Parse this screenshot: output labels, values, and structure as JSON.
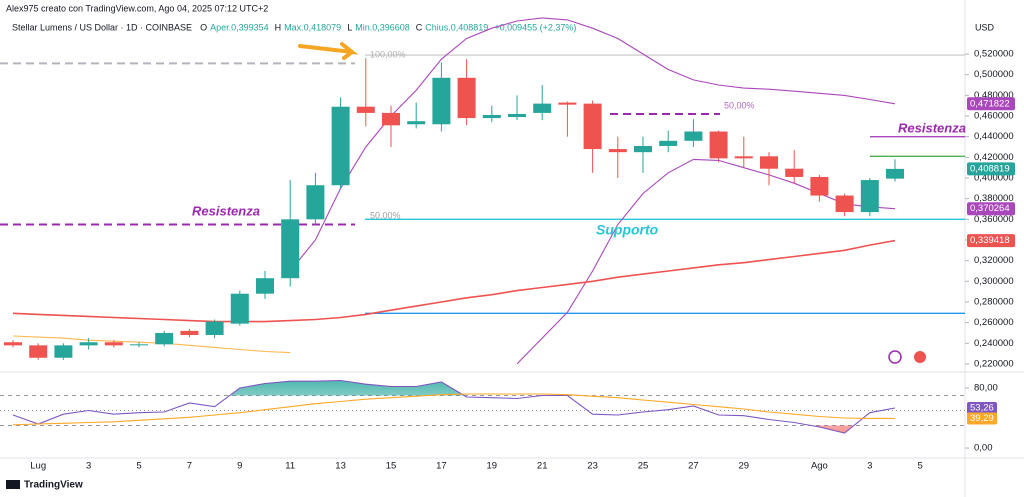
{
  "header": {
    "credit": "Alex975 creato con TradingView.com, Ago 04, 2025 07:12 UTC+2",
    "symbol": "Stellar Lumens / US Dollar · 1D · COINBASE",
    "quote": [
      {
        "key": "O",
        "text": "Aper.0,399354"
      },
      {
        "key": "H",
        "text": "Max.0,418079"
      },
      {
        "key": "L",
        "text": "Min.0,396608"
      },
      {
        "key": "C",
        "text": "Chius.0,408819"
      }
    ],
    "change": "+0,009455 (+2,37%)"
  },
  "footer": {
    "brand": "TradingView"
  },
  "chart_data": [
    {
      "type": "candlestick",
      "currency": "USD",
      "up_color": "#26a69a",
      "down_color": "#ef5350",
      "categories": [
        null,
        "Lug",
        null,
        "3",
        null,
        "5",
        null,
        "7",
        null,
        "9",
        null,
        "11",
        null,
        "13",
        null,
        "15",
        null,
        "17",
        null,
        "19",
        null,
        "21",
        null,
        "23",
        null,
        "25",
        null,
        "27",
        null,
        "29",
        null,
        null,
        "Ago",
        null,
        "3",
        null,
        "5"
      ],
      "open": [
        0.241,
        0.238,
        0.226,
        0.238,
        0.241,
        0.238,
        0.239,
        0.252,
        0.248,
        0.259,
        0.288,
        0.303,
        0.36,
        0.393,
        0.469,
        0.463,
        0.452,
        0.452,
        0.497,
        0.458,
        0.459,
        0.463,
        0.473,
        0.472,
        0.428,
        0.425,
        0.431,
        0.436,
        0.445,
        0.421,
        0.421,
        0.409,
        0.401,
        0.383,
        0.367,
        0.399354,
        null
      ],
      "high": [
        0.243,
        0.24,
        0.24,
        0.245,
        0.243,
        0.241,
        0.252,
        0.254,
        0.263,
        0.291,
        0.31,
        0.398,
        0.405,
        0.478,
        0.516,
        0.47,
        0.473,
        0.512,
        0.515,
        0.47,
        0.48,
        0.49,
        0.474,
        0.475,
        0.44,
        0.44,
        0.446,
        0.457,
        0.446,
        0.44,
        0.425,
        0.427,
        0.403,
        0.385,
        0.4,
        0.418079,
        null
      ],
      "low": [
        0.236,
        0.224,
        0.224,
        0.234,
        0.236,
        0.236,
        0.237,
        0.246,
        0.245,
        0.257,
        0.283,
        0.295,
        0.355,
        0.39,
        0.45,
        0.43,
        0.448,
        0.445,
        0.451,
        0.454,
        0.456,
        0.456,
        0.44,
        0.405,
        0.4,
        0.405,
        0.425,
        0.43,
        0.415,
        0.41,
        0.393,
        0.395,
        0.377,
        0.363,
        0.363,
        0.396608,
        null
      ],
      "close": [
        0.238,
        0.226,
        0.238,
        0.241,
        0.238,
        0.239,
        0.25,
        0.248,
        0.261,
        0.288,
        0.303,
        0.36,
        0.393,
        0.469,
        0.463,
        0.451,
        0.455,
        0.497,
        0.458,
        0.461,
        0.462,
        0.472,
        0.471,
        0.428,
        0.425,
        0.431,
        0.436,
        0.445,
        0.419,
        0.419,
        0.409,
        0.401,
        0.383,
        0.367,
        0.398,
        0.408819,
        null
      ],
      "overlays": [
        {
          "color": "#ab47bc",
          "values": [
            null,
            null,
            null,
            null,
            null,
            null,
            null,
            null,
            null,
            null,
            null,
            0.31,
            0.34,
            0.39,
            0.43,
            0.46,
            0.485,
            0.515,
            0.535,
            0.545,
            0.552,
            0.555,
            0.553,
            0.545,
            0.535,
            0.52,
            0.505,
            0.495,
            0.49,
            0.487,
            0.486,
            0.484,
            0.482,
            0.48,
            0.476,
            0.471822,
            null
          ]
        },
        {
          "color": "#ab47bc",
          "values": [
            null,
            null,
            null,
            null,
            null,
            null,
            null,
            null,
            null,
            null,
            null,
            null,
            null,
            null,
            null,
            null,
            null,
            null,
            null,
            null,
            0.22,
            0.245,
            0.27,
            0.31,
            0.355,
            0.385,
            0.405,
            0.418,
            0.417,
            0.41,
            0.403,
            0.395,
            0.385,
            0.375,
            0.372,
            0.370264,
            null
          ]
        },
        {
          "color": "#ef5350",
          "values": [
            0.269,
            0.268,
            0.267,
            0.266,
            0.265,
            0.264,
            0.263,
            0.262,
            0.261,
            0.261,
            0.261,
            0.262,
            0.263,
            0.265,
            0.268,
            0.272,
            0.276,
            0.28,
            0.284,
            0.287,
            0.291,
            0.294,
            0.297,
            0.3,
            0.304,
            0.307,
            0.31,
            0.313,
            0.316,
            0.318,
            0.321,
            0.324,
            0.327,
            0.33,
            0.335,
            0.339418,
            null
          ]
        },
        {
          "color": "#ffb74d",
          "values": [
            0.247,
            0.246,
            0.245,
            0.243,
            0.242,
            0.241,
            0.24,
            0.238,
            0.236,
            0.234,
            0.232,
            0.231,
            null,
            null,
            null,
            null,
            null,
            null,
            null,
            null,
            null,
            null,
            null,
            null,
            null,
            null,
            null,
            null,
            null,
            null,
            null,
            null,
            null,
            null,
            null,
            null,
            null
          ]
        }
      ],
      "levels": [
        {
          "value": 0.511,
          "color": "#b2b5be",
          "dash": true
        },
        {
          "value": 0.519,
          "color": "#cfcfcf",
          "dash": false
        },
        {
          "value": 0.462,
          "color": "#9c27b0",
          "dash": true
        },
        {
          "value": 0.44,
          "color": "#ab47bc",
          "dash": false
        },
        {
          "value": 0.421,
          "color": "#4caf50",
          "dash": false
        },
        {
          "value": 0.36,
          "color": "#26c6da",
          "dash": false
        },
        {
          "value": 0.355,
          "color": "#9c27b0",
          "dash": true
        },
        {
          "value": 0.269,
          "color": "#2196f3",
          "dash": false
        }
      ],
      "annotations": [
        {
          "text": "Resistenza",
          "color": "#9c27b0"
        },
        {
          "text": "Resistenza",
          "color": "#9c27b0"
        },
        {
          "text": "Supporto",
          "color": "#26c6da"
        },
        {
          "text": "100,00%",
          "color": "#b0b0b0"
        },
        {
          "text": "50,00%",
          "color": "#b06ac0"
        },
        {
          "text": "50,00%",
          "color": "#a0a0a0"
        }
      ],
      "ylim": [
        0.2122,
        0.5723
      ],
      "yticks": [
        {
          "value": 0.52,
          "label": "0,520000"
        },
        {
          "value": 0.5,
          "label": "0,500000"
        },
        {
          "value": 0.48,
          "label": "0,480000"
        },
        {
          "value": 0.46,
          "label": "0,460000"
        },
        {
          "value": 0.44,
          "label": "0,440000"
        },
        {
          "value": 0.42,
          "label": "0,420000"
        },
        {
          "value": 0.4,
          "label": "0,400000"
        },
        {
          "value": 0.38,
          "label": "0,380000"
        },
        {
          "value": 0.36,
          "label": "0,360000"
        },
        {
          "value": 0.34,
          "label": "0,340000"
        },
        {
          "value": 0.32,
          "label": "0,320000"
        },
        {
          "value": 0.3,
          "label": "0,300000"
        },
        {
          "value": 0.28,
          "label": "0,280000"
        },
        {
          "value": 0.26,
          "label": "0,260000"
        },
        {
          "value": 0.24,
          "label": "0,240000"
        },
        {
          "value": 0.22,
          "label": "0,220000"
        }
      ],
      "price_labels": [
        {
          "value": 0.471822,
          "label": "0,471822",
          "color": "#ab47bc"
        },
        {
          "value": 0.408819,
          "label": "0,408819",
          "color": "#26a69a"
        },
        {
          "value": 0.370264,
          "label": "0,370264",
          "color": "#ab47bc"
        },
        {
          "value": 0.339418,
          "label": "0,339418",
          "color": "#ef5350"
        }
      ]
    },
    {
      "type": "line",
      "series": [
        {
          "color": "#7e57c2",
          "values": [
            44,
            32,
            45,
            50,
            45,
            47,
            48,
            60,
            55,
            80,
            86,
            89,
            89,
            90,
            85,
            82,
            82,
            88,
            68,
            67,
            66,
            70,
            70,
            45,
            44,
            48,
            51,
            56,
            44,
            43,
            38,
            34,
            28,
            20,
            47,
            53.26,
            null
          ]
        },
        {
          "color": "#ffa726",
          "values": [
            31,
            32,
            33,
            34,
            35,
            37,
            39,
            41,
            44,
            47,
            51,
            55,
            59,
            62,
            65,
            67,
            69,
            71,
            72,
            72,
            72,
            72,
            71,
            69,
            67,
            64,
            61,
            58,
            55,
            52,
            48,
            45,
            42,
            40,
            39.5,
            39.29,
            null
          ]
        }
      ],
      "ylim": [
        -13.3,
        97.3
      ],
      "yticks": [
        {
          "value": 80,
          "label": "80,00"
        },
        {
          "value": 0,
          "label": "0,00"
        }
      ],
      "levels": [
        70,
        50,
        30
      ],
      "value_labels": [
        {
          "value": 53.26,
          "label": "53,26",
          "color": "#7e57c2"
        },
        {
          "value": 39.29,
          "label": "39,29",
          "color": "#ffa726"
        }
      ]
    }
  ]
}
